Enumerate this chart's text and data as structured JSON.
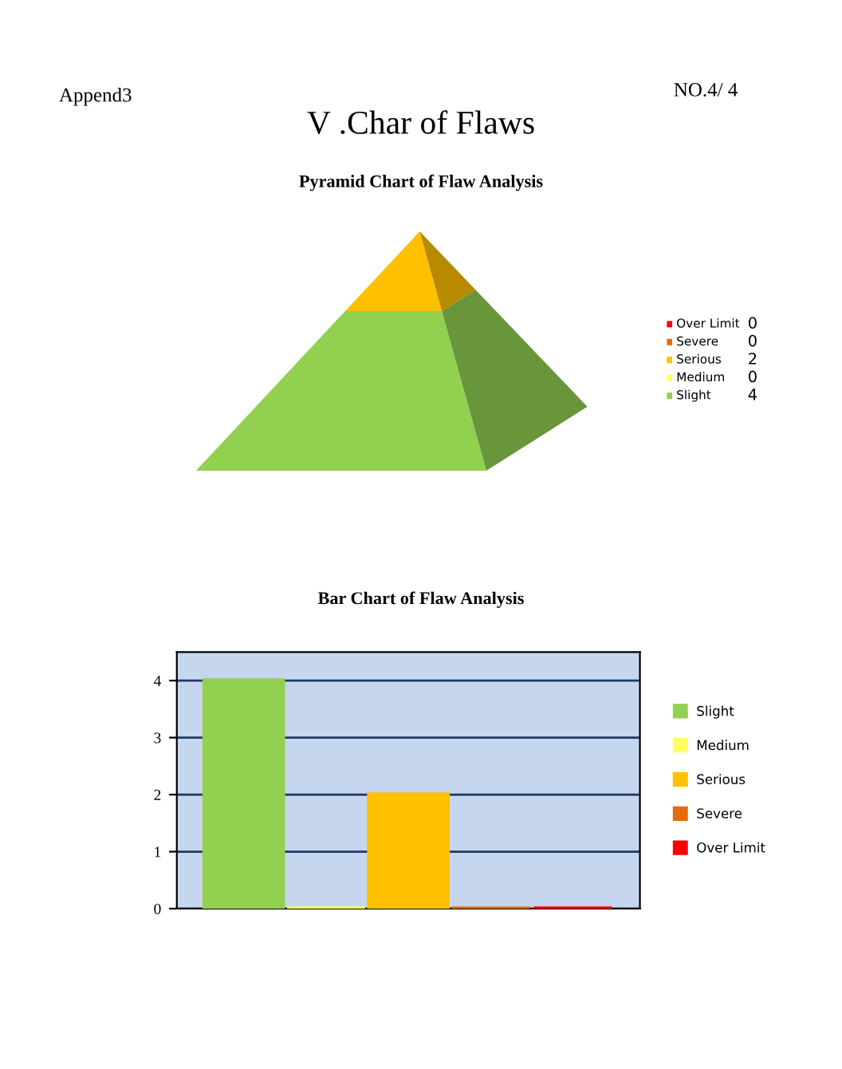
{
  "chart_data": [
    {
      "type": "other",
      "title": "Pyramid Chart of Flaw Analysis",
      "annotations": [
        "Append3",
        "NO.4/ 4",
        "V .Char of Flaws"
      ],
      "categories": [
        "Over Limit",
        "Severe",
        "Serious",
        "Medium",
        "Slight"
      ],
      "values": [
        0,
        0,
        2,
        0,
        4
      ],
      "colors": [
        "#ff0000",
        "#e46c0a",
        "#ffc000",
        "#ffff66",
        "#92d050"
      ],
      "data_labels": true
    },
    {
      "type": "bar",
      "title": "Bar Chart of Flaw Analysis",
      "categories": [
        null
      ],
      "series": [
        {
          "name": "Slight",
          "color": "#92d050",
          "values": [
            4
          ]
        },
        {
          "name": "Medium",
          "color": "#ffff66",
          "values": [
            0
          ]
        },
        {
          "name": "Serious",
          "color": "#ffc000",
          "values": [
            2
          ]
        },
        {
          "name": "Severe",
          "color": "#e46c0a",
          "values": [
            0
          ]
        },
        {
          "name": "Over Limit",
          "color": "#ff0000",
          "values": [
            0
          ]
        }
      ],
      "ylim": [
        0,
        4.5
      ],
      "yticks": [
        0,
        1,
        2,
        3,
        4
      ],
      "grid": "y",
      "legend": "right"
    }
  ]
}
